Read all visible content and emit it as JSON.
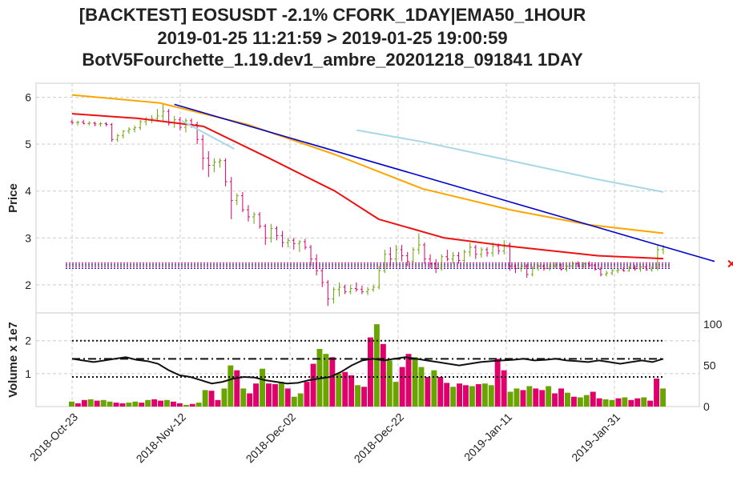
{
  "title": {
    "line1": "[BACKTEST] EOSUSDT -2.1% CFORK_1DAY|EMA50_1HOUR",
    "line2": "2019-01-25 11:21:59 > 2019-01-25 19:00:59",
    "line3": "BotV5Fourchette_1.19.dev1_ambre_20201218_091841 1DAY"
  },
  "chart_data": [
    {
      "type": "candlestick",
      "ylabel": "Price",
      "ylim": [
        1.4,
        6.3
      ],
      "yticks": [
        "2",
        "3",
        "4",
        "5",
        "6"
      ],
      "xticks": [
        "2018-Oct-23",
        "2018-Nov-12",
        "2018-Dec-02",
        "2018-Dec-22",
        "2019-Jan-11",
        "2019-Jan-31"
      ],
      "grid": true,
      "colors": {
        "up": "#6aa400",
        "down": "#e0006b",
        "ema_orange": "#ffa500",
        "ema_red": "#ee1111",
        "ema_lightblue": "#a8d8e6",
        "trend_blue": "#0000cc"
      },
      "candles": [
        [
          5.48,
          5.52,
          5.42,
          5.46
        ],
        [
          5.46,
          5.5,
          5.4,
          5.47
        ],
        [
          5.47,
          5.52,
          5.42,
          5.44
        ],
        [
          5.44,
          5.49,
          5.4,
          5.45
        ],
        [
          5.45,
          5.48,
          5.38,
          5.43
        ],
        [
          5.43,
          5.47,
          5.38,
          5.44
        ],
        [
          5.44,
          5.47,
          5.38,
          5.42
        ],
        [
          5.42,
          5.45,
          5.05,
          5.1
        ],
        [
          5.1,
          5.22,
          5.05,
          5.18
        ],
        [
          5.18,
          5.3,
          5.12,
          5.28
        ],
        [
          5.28,
          5.36,
          5.22,
          5.32
        ],
        [
          5.32,
          5.4,
          5.25,
          5.35
        ],
        [
          5.35,
          5.52,
          5.3,
          5.48
        ],
        [
          5.48,
          5.58,
          5.4,
          5.52
        ],
        [
          5.52,
          5.62,
          5.45,
          5.55
        ],
        [
          5.55,
          5.75,
          5.5,
          5.6
        ],
        [
          5.6,
          5.85,
          5.5,
          5.7
        ],
        [
          5.7,
          5.75,
          5.4,
          5.45
        ],
        [
          5.45,
          5.6,
          5.35,
          5.52
        ],
        [
          5.52,
          5.58,
          5.3,
          5.36
        ],
        [
          5.36,
          5.55,
          5.25,
          5.5
        ],
        [
          5.5,
          5.55,
          5.35,
          5.42
        ],
        [
          5.42,
          5.48,
          5.0,
          5.1
        ],
        [
          5.1,
          5.2,
          4.45,
          4.7
        ],
        [
          4.7,
          4.85,
          4.3,
          4.55
        ],
        [
          4.55,
          4.7,
          4.4,
          4.62
        ],
        [
          4.62,
          4.7,
          4.5,
          4.65
        ],
        [
          4.65,
          4.7,
          4.1,
          4.2
        ],
        [
          4.2,
          4.3,
          3.4,
          3.8
        ],
        [
          3.8,
          3.95,
          3.7,
          3.9
        ],
        [
          3.9,
          3.98,
          3.55,
          3.6
        ],
        [
          3.6,
          3.7,
          3.35,
          3.45
        ],
        [
          3.45,
          3.55,
          3.3,
          3.5
        ],
        [
          3.5,
          3.55,
          3.2,
          3.25
        ],
        [
          3.25,
          3.3,
          2.85,
          3.0
        ],
        [
          3.0,
          3.3,
          2.9,
          3.2
        ],
        [
          3.2,
          3.25,
          2.95,
          3.05
        ],
        [
          3.05,
          3.15,
          2.8,
          2.9
        ],
        [
          2.9,
          3.0,
          2.8,
          2.95
        ],
        [
          2.95,
          3.0,
          2.75,
          2.88
        ],
        [
          2.88,
          2.95,
          2.7,
          2.92
        ],
        [
          2.92,
          2.98,
          2.75,
          2.8
        ],
        [
          2.8,
          2.85,
          2.4,
          2.55
        ],
        [
          2.55,
          2.65,
          2.2,
          2.3
        ],
        [
          2.3,
          2.35,
          1.95,
          2.05
        ],
        [
          2.05,
          2.1,
          1.55,
          1.7
        ],
        [
          1.7,
          1.95,
          1.6,
          1.9
        ],
        [
          1.9,
          2.05,
          1.75,
          1.95
        ],
        [
          1.95,
          2.0,
          1.8,
          1.85
        ],
        [
          1.85,
          2.0,
          1.8,
          1.92
        ],
        [
          1.92,
          2.05,
          1.85,
          1.9
        ],
        [
          1.9,
          1.98,
          1.8,
          1.85
        ],
        [
          1.85,
          1.95,
          1.78,
          1.9
        ],
        [
          1.9,
          2.0,
          1.85,
          1.95
        ],
        [
          1.95,
          2.4,
          1.9,
          2.3
        ],
        [
          2.3,
          2.75,
          2.25,
          2.65
        ],
        [
          2.65,
          2.8,
          2.4,
          2.55
        ],
        [
          2.55,
          2.85,
          2.45,
          2.75
        ],
        [
          2.75,
          2.85,
          2.5,
          2.62
        ],
        [
          2.62,
          2.7,
          2.4,
          2.5
        ],
        [
          2.5,
          2.8,
          2.45,
          2.75
        ],
        [
          2.75,
          3.1,
          2.65,
          2.85
        ],
        [
          2.85,
          2.9,
          2.45,
          2.55
        ],
        [
          2.55,
          2.65,
          2.35,
          2.45
        ],
        [
          2.45,
          2.55,
          2.25,
          2.35
        ],
        [
          2.35,
          2.65,
          2.3,
          2.6
        ],
        [
          2.6,
          2.75,
          2.5,
          2.55
        ],
        [
          2.55,
          2.7,
          2.45,
          2.62
        ],
        [
          2.62,
          2.7,
          2.45,
          2.52
        ],
        [
          2.52,
          2.75,
          2.48,
          2.7
        ],
        [
          2.7,
          2.9,
          2.6,
          2.8
        ],
        [
          2.8,
          2.85,
          2.55,
          2.65
        ],
        [
          2.65,
          2.8,
          2.58,
          2.75
        ],
        [
          2.75,
          2.8,
          2.6,
          2.68
        ],
        [
          2.68,
          2.9,
          2.6,
          2.82
        ],
        [
          2.82,
          2.88,
          2.65,
          2.72
        ],
        [
          2.72,
          2.95,
          2.65,
          2.85
        ],
        [
          2.85,
          2.9,
          2.3,
          2.4
        ],
        [
          2.4,
          2.45,
          2.25,
          2.35
        ],
        [
          2.35,
          2.45,
          2.28,
          2.4
        ],
        [
          2.4,
          2.45,
          2.15,
          2.22
        ],
        [
          2.22,
          2.4,
          2.18,
          2.35
        ],
        [
          2.35,
          2.45,
          2.3,
          2.4
        ],
        [
          2.4,
          2.45,
          2.3,
          2.35
        ],
        [
          2.35,
          2.45,
          2.3,
          2.4
        ],
        [
          2.4,
          2.48,
          2.35,
          2.42
        ],
        [
          2.42,
          2.46,
          2.3,
          2.33
        ],
        [
          2.33,
          2.45,
          2.28,
          2.4
        ],
        [
          2.4,
          2.5,
          2.35,
          2.45
        ],
        [
          2.45,
          2.5,
          2.38,
          2.4
        ],
        [
          2.4,
          2.48,
          2.35,
          2.45
        ],
        [
          2.45,
          2.5,
          2.38,
          2.42
        ],
        [
          2.42,
          2.45,
          2.3,
          2.33
        ],
        [
          2.33,
          2.38,
          2.18,
          2.22
        ],
        [
          2.22,
          2.3,
          2.18,
          2.25
        ],
        [
          2.25,
          2.35,
          2.2,
          2.3
        ],
        [
          2.3,
          2.35,
          2.25,
          2.32
        ],
        [
          2.32,
          2.38,
          2.28,
          2.3
        ],
        [
          2.3,
          2.4,
          2.28,
          2.36
        ],
        [
          2.36,
          2.42,
          2.3,
          2.34
        ],
        [
          2.34,
          2.4,
          2.28,
          2.38
        ],
        [
          2.38,
          2.42,
          2.3,
          2.32
        ],
        [
          2.32,
          2.4,
          2.28,
          2.36
        ],
        [
          2.36,
          2.85,
          2.3,
          2.75
        ],
        [
          2.75,
          2.85,
          2.65,
          2.8
        ]
      ],
      "ema_orange": [
        [
          0,
          6.05
        ],
        [
          20,
          5.88
        ],
        [
          40,
          5.42
        ],
        [
          60,
          4.78
        ],
        [
          80,
          4.05
        ],
        [
          100,
          3.6
        ],
        [
          118,
          3.28
        ],
        [
          135,
          3.1
        ]
      ],
      "ema_red": [
        [
          0,
          5.65
        ],
        [
          15,
          5.55
        ],
        [
          30,
          5.38
        ],
        [
          45,
          4.7
        ],
        [
          60,
          4.0
        ],
        [
          70,
          3.4
        ],
        [
          85,
          3.0
        ],
        [
          100,
          2.82
        ],
        [
          120,
          2.62
        ],
        [
          135,
          2.56
        ]
      ],
      "ema_lightblue_left": [
        [
          25,
          5.5
        ],
        [
          37,
          4.9
        ]
      ],
      "ema_lightblue_right": [
        [
          65,
          5.3
        ],
        [
          80,
          5.05
        ],
        [
          100,
          4.65
        ],
        [
          120,
          4.25
        ],
        [
          135,
          3.98
        ]
      ],
      "trend_blue": [
        [
          18,
          5.85
        ],
        [
          113,
          2.5
        ]
      ],
      "hlines": [
        {
          "y": 2.47,
          "color": "#e0006b"
        },
        {
          "y": 2.44,
          "color": "#0000cc"
        },
        {
          "y": 2.41,
          "color": "#222222"
        },
        {
          "y": 2.38,
          "color": "#e0006b"
        },
        {
          "y": 2.35,
          "color": "#0000cc"
        }
      ],
      "markers": [
        {
          "i": 116,
          "y": 2.45,
          "color": "#ee1111",
          "symbol": "x"
        }
      ]
    },
    {
      "type": "bar",
      "ylabel": "Volume x 1e7",
      "ylim": [
        0,
        2.6
      ],
      "yticks": [
        "1",
        "2"
      ],
      "y2ticks": [
        "0",
        "50",
        "100"
      ],
      "volumes": [
        0.15,
        0.1,
        0.2,
        0.22,
        0.18,
        0.2,
        0.15,
        0.12,
        0.1,
        0.12,
        0.15,
        0.12,
        0.2,
        0.22,
        0.18,
        0.2,
        0.15,
        0.1,
        0.05,
        0.08,
        0.12,
        0.5,
        0.48,
        0.2,
        0.55,
        1.25,
        1.1,
        0.55,
        0.4,
        0.7,
        1.15,
        0.7,
        0.68,
        0.75,
        0.55,
        0.3,
        0.4,
        0.75,
        1.3,
        1.75,
        1.6,
        1.5,
        1.0,
        1.05,
        0.95,
        0.65,
        0.6,
        2.1,
        2.5,
        1.9,
        1.4,
        0.75,
        1.2,
        1.6,
        1.5,
        1.2,
        0.9,
        1.1,
        0.9,
        0.72,
        0.6,
        0.7,
        0.65,
        0.62,
        0.68,
        0.7,
        0.65,
        1.45,
        1.1,
        0.45,
        0.55,
        0.5,
        0.62,
        0.55,
        0.5,
        0.62,
        0.4,
        0.55,
        0.42,
        0.3,
        0.28,
        0.35,
        0.45,
        0.25,
        0.22,
        0.2,
        0.25,
        0.28,
        0.2,
        0.25,
        0.28,
        0.18,
        0.85,
        0.55
      ],
      "volume_colors": "alternating",
      "volume_ma": [
        1.45,
        1.4,
        1.35,
        1.4,
        1.45,
        1.5,
        1.42,
        1.38,
        1.3,
        1.1,
        0.95,
        0.9,
        0.8,
        0.7,
        0.75,
        0.85,
        0.9,
        0.88,
        0.8,
        0.75,
        0.7,
        0.72,
        0.8,
        0.85,
        0.9,
        1.05,
        1.25,
        1.4,
        1.45,
        1.4,
        1.45,
        1.5,
        1.45,
        1.4,
        1.35,
        1.3,
        1.25,
        1.3,
        1.35,
        1.38,
        1.4,
        1.42,
        1.45,
        1.4,
        1.42,
        1.45,
        1.4,
        1.38,
        1.35,
        1.4,
        1.35,
        1.3,
        1.35,
        1.4,
        1.35,
        1.45
      ],
      "hline_dotted_top": 2.0,
      "hline_dashdot": 1.45,
      "hline_dotted_bottom": 0.9
    }
  ]
}
